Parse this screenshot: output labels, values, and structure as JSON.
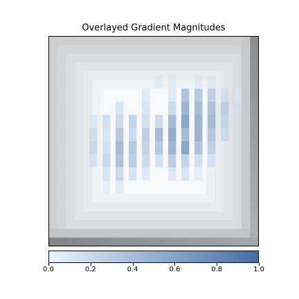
{
  "chart_data": {
    "type": "heatmap",
    "title": "Overlayed Gradient Magnitudes",
    "xlabel": "",
    "ylabel": "",
    "base_image": "grayscale square frame: light gray border, dark gray right and bottom edges, white center",
    "overlay": {
      "description": "blue gradient-magnitude blocks concentrated in the center of the image",
      "grid_size": [
        16,
        16
      ],
      "cells": [
        {
          "col": 8,
          "row": 3,
          "value": 0.1
        },
        {
          "col": 9,
          "row": 3,
          "value": 0.1
        },
        {
          "col": 11,
          "row": 3,
          "value": 0.1
        },
        {
          "col": 12,
          "row": 3,
          "value": 0.15
        },
        {
          "col": 7,
          "row": 4,
          "value": 0.15
        },
        {
          "col": 9,
          "row": 4,
          "value": 0.15
        },
        {
          "col": 10,
          "row": 4,
          "value": 0.5
        },
        {
          "col": 11,
          "row": 4,
          "value": 0.45
        },
        {
          "col": 12,
          "row": 4,
          "value": 0.35
        },
        {
          "col": 13,
          "row": 4,
          "value": 0.2
        },
        {
          "col": 14,
          "row": 4,
          "value": 0.1
        },
        {
          "col": 5,
          "row": 5,
          "value": 0.2
        },
        {
          "col": 7,
          "row": 5,
          "value": 0.2
        },
        {
          "col": 9,
          "row": 5,
          "value": 0.3
        },
        {
          "col": 10,
          "row": 5,
          "value": 0.6
        },
        {
          "col": 11,
          "row": 5,
          "value": 0.55
        },
        {
          "col": 12,
          "row": 5,
          "value": 0.5
        },
        {
          "col": 13,
          "row": 5,
          "value": 0.35
        },
        {
          "col": 14,
          "row": 5,
          "value": 0.15
        },
        {
          "col": 3,
          "row": 6,
          "value": 0.15
        },
        {
          "col": 4,
          "row": 6,
          "value": 0.25
        },
        {
          "col": 5,
          "row": 6,
          "value": 0.3
        },
        {
          "col": 6,
          "row": 6,
          "value": 0.35
        },
        {
          "col": 7,
          "row": 6,
          "value": 0.25
        },
        {
          "col": 8,
          "row": 6,
          "value": 0.3
        },
        {
          "col": 9,
          "row": 6,
          "value": 0.55
        },
        {
          "col": 10,
          "row": 6,
          "value": 0.7
        },
        {
          "col": 11,
          "row": 6,
          "value": 0.6
        },
        {
          "col": 12,
          "row": 6,
          "value": 0.55
        },
        {
          "col": 13,
          "row": 6,
          "value": 0.3
        },
        {
          "col": 3,
          "row": 7,
          "value": 0.25
        },
        {
          "col": 4,
          "row": 7,
          "value": 0.2
        },
        {
          "col": 5,
          "row": 7,
          "value": 0.45
        },
        {
          "col": 6,
          "row": 7,
          "value": 0.3
        },
        {
          "col": 7,
          "row": 7,
          "value": 0.4
        },
        {
          "col": 8,
          "row": 7,
          "value": 0.55
        },
        {
          "col": 9,
          "row": 7,
          "value": 0.65
        },
        {
          "col": 10,
          "row": 7,
          "value": 0.55
        },
        {
          "col": 11,
          "row": 7,
          "value": 0.6
        },
        {
          "col": 12,
          "row": 7,
          "value": 0.45
        },
        {
          "col": 13,
          "row": 7,
          "value": 0.25
        },
        {
          "col": 3,
          "row": 8,
          "value": 0.3
        },
        {
          "col": 4,
          "row": 8,
          "value": 0.25
        },
        {
          "col": 5,
          "row": 8,
          "value": 0.55
        },
        {
          "col": 6,
          "row": 8,
          "value": 0.45
        },
        {
          "col": 7,
          "row": 8,
          "value": 0.35
        },
        {
          "col": 8,
          "row": 8,
          "value": 0.45
        },
        {
          "col": 9,
          "row": 8,
          "value": 0.6
        },
        {
          "col": 10,
          "row": 8,
          "value": 0.7
        },
        {
          "col": 11,
          "row": 8,
          "value": 0.5
        },
        {
          "col": 12,
          "row": 8,
          "value": 0.35
        },
        {
          "col": 3,
          "row": 9,
          "value": 0.2
        },
        {
          "col": 4,
          "row": 9,
          "value": 0.3
        },
        {
          "col": 5,
          "row": 9,
          "value": 0.5
        },
        {
          "col": 6,
          "row": 9,
          "value": 0.4
        },
        {
          "col": 7,
          "row": 9,
          "value": 0.3
        },
        {
          "col": 8,
          "row": 9,
          "value": 0.25
        },
        {
          "col": 9,
          "row": 9,
          "value": 0.4
        },
        {
          "col": 10,
          "row": 9,
          "value": 0.35
        },
        {
          "col": 11,
          "row": 9,
          "value": 0.25
        },
        {
          "col": 12,
          "row": 9,
          "value": 0.2
        },
        {
          "col": 4,
          "row": 10,
          "value": 0.2
        },
        {
          "col": 5,
          "row": 10,
          "value": 0.3
        },
        {
          "col": 6,
          "row": 10,
          "value": 0.2
        },
        {
          "col": 7,
          "row": 10,
          "value": 0.15
        },
        {
          "col": 9,
          "row": 10,
          "value": 0.15
        },
        {
          "col": 10,
          "row": 10,
          "value": 0.2
        },
        {
          "col": 11,
          "row": 10,
          "value": 0.1
        },
        {
          "col": 4,
          "row": 11,
          "value": 0.1
        },
        {
          "col": 5,
          "row": 11,
          "value": 0.15
        }
      ]
    },
    "colorbar": {
      "orientation": "horizontal",
      "range": [
        0.0,
        1.0
      ],
      "ticks": [
        "0.0",
        "0.2",
        "0.4",
        "0.6",
        "0.8",
        "1.0"
      ],
      "colormap": "light blue to steel blue"
    }
  }
}
